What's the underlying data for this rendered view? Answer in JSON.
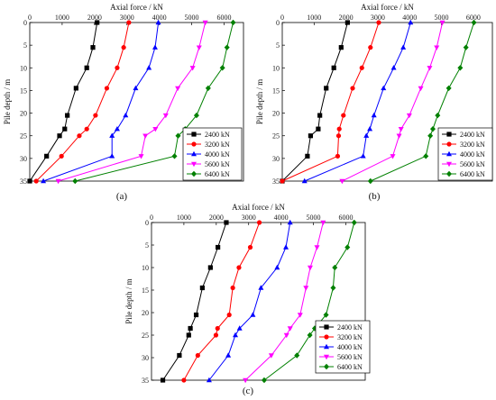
{
  "figure": {
    "panel_labels": [
      "(a)",
      "(b)",
      "(c)"
    ]
  },
  "chart_data": [
    {
      "panel": "(a)",
      "type": "line",
      "xlabel": "Axial force / kN",
      "ylabel": "Pile depth / m",
      "xlim": [
        0,
        6600
      ],
      "ylim": [
        0,
        35
      ],
      "xticks": [
        0,
        1000,
        2000,
        3000,
        4000,
        5000,
        6000
      ],
      "yticks": [
        0,
        5,
        10,
        15,
        20,
        25,
        30,
        35
      ],
      "legend": "right",
      "series": [
        {
          "name": "2400 kN",
          "color": "#000000",
          "marker": "square",
          "points": [
            [
              2080,
              0
            ],
            [
              1950,
              5.5
            ],
            [
              1760,
              10
            ],
            [
              1430,
              14.5
            ],
            [
              1160,
              20.5
            ],
            [
              1080,
              23.5
            ],
            [
              920,
              25
            ],
            [
              520,
              29.5
            ],
            [
              0,
              35
            ]
          ]
        },
        {
          "name": "3200 kN",
          "color": "#ff0000",
          "marker": "circle",
          "points": [
            [
              3060,
              0
            ],
            [
              2900,
              5.5
            ],
            [
              2700,
              10
            ],
            [
              2380,
              14.5
            ],
            [
              2030,
              20.5
            ],
            [
              1760,
              23.5
            ],
            [
              1530,
              25
            ],
            [
              980,
              29.5
            ],
            [
              200,
              35
            ]
          ]
        },
        {
          "name": "4000 kN",
          "color": "#0000ff",
          "marker": "triangle-up",
          "points": [
            [
              3970,
              0
            ],
            [
              3870,
              5.5
            ],
            [
              3680,
              10
            ],
            [
              3270,
              14.5
            ],
            [
              2960,
              20.5
            ],
            [
              2700,
              23.5
            ],
            [
              2540,
              25
            ],
            [
              2540,
              29.5
            ],
            [
              420,
              35
            ]
          ]
        },
        {
          "name": "5600 kN",
          "color": "#ff00ff",
          "marker": "triangle-down",
          "points": [
            [
              5420,
              0
            ],
            [
              5230,
              5.5
            ],
            [
              5030,
              10
            ],
            [
              4570,
              14.5
            ],
            [
              4200,
              20.5
            ],
            [
              3880,
              23.5
            ],
            [
              3570,
              25
            ],
            [
              3440,
              29.5
            ],
            [
              880,
              35
            ]
          ]
        },
        {
          "name": "6400 kN",
          "color": "#008000",
          "marker": "diamond",
          "points": [
            [
              6280,
              0
            ],
            [
              6090,
              5.5
            ],
            [
              5950,
              10
            ],
            [
              5510,
              14.5
            ],
            [
              5150,
              20.5
            ],
            [
              4800,
              23.5
            ],
            [
              4580,
              25
            ],
            [
              4470,
              29.5
            ],
            [
              1400,
              35
            ]
          ]
        }
      ]
    },
    {
      "panel": "(b)",
      "type": "line",
      "xlabel": "Axial force / kN",
      "ylabel": "Pile depth / m",
      "xlim": [
        0,
        6600
      ],
      "ylim": [
        0,
        35
      ],
      "xticks": [
        0,
        1000,
        2000,
        3000,
        4000,
        5000,
        6000
      ],
      "yticks": [
        0,
        5,
        10,
        15,
        20,
        25,
        30,
        35
      ],
      "legend": "right",
      "series": [
        {
          "name": "2400 kN",
          "color": "#000000",
          "marker": "square",
          "points": [
            [
              2050,
              0
            ],
            [
              1850,
              5.5
            ],
            [
              1620,
              10
            ],
            [
              1380,
              14.5
            ],
            [
              1180,
              20.5
            ],
            [
              1130,
              23.5
            ],
            [
              890,
              25
            ],
            [
              790,
              29.5
            ],
            [
              0,
              35
            ]
          ]
        },
        {
          "name": "3200 kN",
          "color": "#ff0000",
          "marker": "circle",
          "points": [
            [
              3030,
              0
            ],
            [
              2770,
              5.5
            ],
            [
              2500,
              10
            ],
            [
              2210,
              14.5
            ],
            [
              1920,
              20.5
            ],
            [
              1790,
              23.5
            ],
            [
              1770,
              25
            ],
            [
              1740,
              29.5
            ],
            [
              0,
              35
            ]
          ]
        },
        {
          "name": "4000 kN",
          "color": "#0000ff",
          "marker": "triangle-up",
          "points": [
            [
              4030,
              0
            ],
            [
              3800,
              5.5
            ],
            [
              3500,
              10
            ],
            [
              3180,
              14.5
            ],
            [
              2880,
              20.5
            ],
            [
              2750,
              23.5
            ],
            [
              2640,
              25
            ],
            [
              2540,
              29.5
            ],
            [
              700,
              35
            ]
          ]
        },
        {
          "name": "5600 kN",
          "color": "#ff00ff",
          "marker": "triangle-down",
          "points": [
            [
              5030,
              0
            ],
            [
              4850,
              5.5
            ],
            [
              4630,
              10
            ],
            [
              4350,
              14.5
            ],
            [
              3990,
              20.5
            ],
            [
              3730,
              23.5
            ],
            [
              3670,
              25
            ],
            [
              3470,
              29.5
            ],
            [
              1880,
              35
            ]
          ]
        },
        {
          "name": "6400 kN",
          "color": "#008000",
          "marker": "diamond",
          "points": [
            [
              6020,
              0
            ],
            [
              5770,
              5.5
            ],
            [
              5590,
              10
            ],
            [
              5230,
              14.5
            ],
            [
              4880,
              20.5
            ],
            [
              4730,
              23.5
            ],
            [
              4650,
              25
            ],
            [
              4510,
              29.5
            ],
            [
              2770,
              35
            ]
          ]
        }
      ]
    },
    {
      "panel": "(c)",
      "type": "line",
      "xlabel": "Axial force / kN",
      "ylabel": "Pile depth / m",
      "xlim": [
        0,
        6600
      ],
      "ylim": [
        0,
        35
      ],
      "xticks": [
        0,
        1000,
        2000,
        3000,
        4000,
        5000,
        6000
      ],
      "yticks": [
        0,
        5,
        10,
        15,
        20,
        25,
        30,
        35
      ],
      "legend": "right",
      "series": [
        {
          "name": "2400 kN",
          "color": "#000000",
          "marker": "square",
          "points": [
            [
              2310,
              0
            ],
            [
              2050,
              5.5
            ],
            [
              1820,
              10
            ],
            [
              1570,
              14.5
            ],
            [
              1380,
              20.5
            ],
            [
              1200,
              23.5
            ],
            [
              1150,
              25
            ],
            [
              860,
              29.5
            ],
            [
              350,
              35
            ]
          ]
        },
        {
          "name": "3200 kN",
          "color": "#ff0000",
          "marker": "circle",
          "points": [
            [
              3330,
              0
            ],
            [
              3050,
              5.5
            ],
            [
              2700,
              10
            ],
            [
              2510,
              14.5
            ],
            [
              2400,
              20.5
            ],
            [
              2040,
              23.5
            ],
            [
              1990,
              25
            ],
            [
              1430,
              29.5
            ],
            [
              1000,
              35
            ]
          ]
        },
        {
          "name": "4000 kN",
          "color": "#0000ff",
          "marker": "triangle-up",
          "points": [
            [
              4280,
              0
            ],
            [
              4150,
              5.5
            ],
            [
              3880,
              10
            ],
            [
              3380,
              14.5
            ],
            [
              3130,
              20.5
            ],
            [
              2720,
              23.5
            ],
            [
              2590,
              25
            ],
            [
              2370,
              29.5
            ],
            [
              1780,
              35
            ]
          ]
        },
        {
          "name": "5600 kN",
          "color": "#ff00ff",
          "marker": "triangle-down",
          "points": [
            [
              5300,
              0
            ],
            [
              5110,
              5.5
            ],
            [
              4900,
              10
            ],
            [
              4770,
              14.5
            ],
            [
              4590,
              20.5
            ],
            [
              4280,
              23.5
            ],
            [
              4170,
              25
            ],
            [
              3700,
              29.5
            ],
            [
              2900,
              35
            ]
          ]
        },
        {
          "name": "6400 kN",
          "color": "#008000",
          "marker": "diamond",
          "points": [
            [
              6260,
              0
            ],
            [
              6050,
              5.5
            ],
            [
              5660,
              10
            ],
            [
              5610,
              14.5
            ],
            [
              5390,
              20.5
            ],
            [
              5040,
              23.5
            ],
            [
              4890,
              25
            ],
            [
              4490,
              29.5
            ],
            [
              3480,
              35
            ]
          ]
        }
      ]
    }
  ]
}
